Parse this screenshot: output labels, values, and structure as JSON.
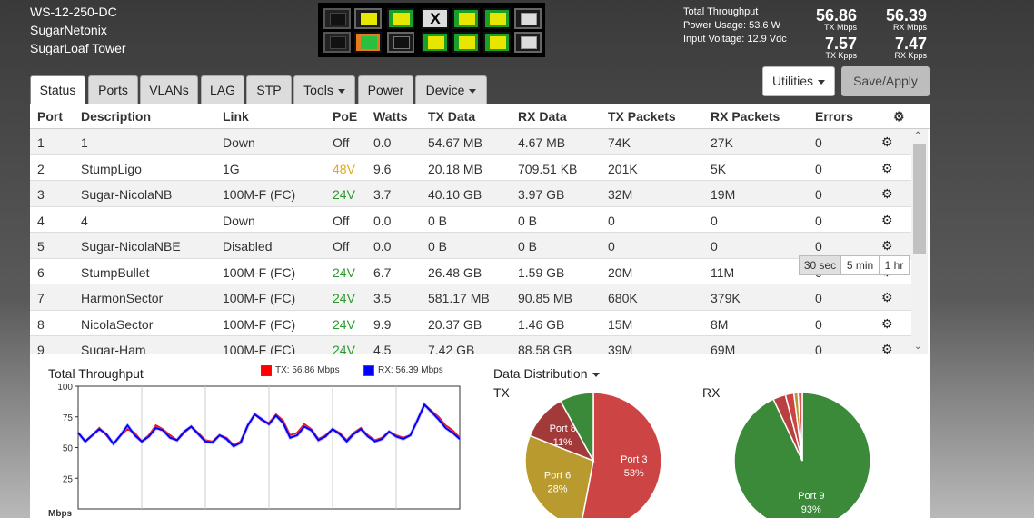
{
  "device": {
    "model": "WS-12-250-DC",
    "name": "SugarNetonix",
    "location": "SugarLoaf Tower"
  },
  "port_map": {
    "top": [
      "empty",
      "yellow-on-black",
      "yellow-on-green",
      "x",
      "yellow-on-green",
      "yellow-on-green",
      "white-on-black"
    ],
    "bottom": [
      "empty",
      "green-on-orange",
      "black-on-black",
      "yellow-on-green",
      "yellow-on-green",
      "yellow-on-green",
      "white-on-black"
    ]
  },
  "throughput": {
    "label_total": "Total Throughput",
    "power_usage": "Power Usage: 53.6 W",
    "input_voltage": "Input Voltage: 12.9 Vdc",
    "tx_mbps": "56.86",
    "tx_mbps_unit": "TX Mbps",
    "rx_mbps": "56.39",
    "rx_mbps_unit": "RX Mbps",
    "tx_kpps": "7.57",
    "tx_kpps_unit": "TX Kpps",
    "rx_kpps": "7.47",
    "rx_kpps_unit": "RX Kpps"
  },
  "actions": {
    "utilities": "Utilities",
    "save": "Save/Apply"
  },
  "tabs": [
    "Status",
    "Ports",
    "VLANs",
    "LAG",
    "STP",
    "Tools",
    "Power",
    "Device"
  ],
  "table": {
    "headers": [
      "Port",
      "Description",
      "Link",
      "PoE",
      "Watts",
      "TX Data",
      "RX Data",
      "TX Packets",
      "RX Packets",
      "Errors"
    ],
    "rows": [
      [
        "1",
        "1",
        "Down",
        "Off",
        "0.0",
        "54.67 MB",
        "4.67 MB",
        "74K",
        "27K",
        "0"
      ],
      [
        "2",
        "StumpLigo",
        "1G",
        "48V",
        "9.6",
        "20.18 MB",
        "709.51 KB",
        "201K",
        "5K",
        "0"
      ],
      [
        "3",
        "Sugar-NicolaNB",
        "100M-F (FC)",
        "24V",
        "3.7",
        "40.10 GB",
        "3.97 GB",
        "32M",
        "19M",
        "0"
      ],
      [
        "4",
        "4",
        "Down",
        "Off",
        "0.0",
        "0 B",
        "0 B",
        "0",
        "0",
        "0"
      ],
      [
        "5",
        "Sugar-NicolaNBE",
        "Disabled",
        "Off",
        "0.0",
        "0 B",
        "0 B",
        "0",
        "0",
        "0"
      ],
      [
        "6",
        "StumpBullet",
        "100M-F (FC)",
        "24V",
        "6.7",
        "26.48 GB",
        "1.59 GB",
        "20M",
        "11M",
        "0"
      ],
      [
        "7",
        "HarmonSector",
        "100M-F (FC)",
        "24V",
        "3.5",
        "581.17 MB",
        "90.85 MB",
        "680K",
        "379K",
        "0"
      ],
      [
        "8",
        "NicolaSector",
        "100M-F (FC)",
        "24V",
        "9.9",
        "20.37 GB",
        "1.46 GB",
        "15M",
        "8M",
        "0"
      ],
      [
        "9",
        "Sugar-Ham",
        "100M-F (FC)",
        "24V",
        "4.5",
        "7.42 GB",
        "88.58 GB",
        "39M",
        "69M",
        "0"
      ]
    ],
    "poe_colors": {
      "48V": "#e6a817",
      "24V": "#2a9a2a",
      "Off": "#333333"
    }
  },
  "charts": {
    "throughput_title": "Total Throughput",
    "legend_tx": "TX: 56.86 Mbps",
    "legend_rx": "RX: 56.39 Mbps",
    "distribution_title": "Data Distribution",
    "tx_label": "TX",
    "rx_label": "RX",
    "time_buttons": [
      "30 sec",
      "5 min",
      "1 hr"
    ]
  },
  "chart_data": [
    {
      "type": "line",
      "title": "Total Throughput",
      "ylabel": "Mbps",
      "ylim": [
        0,
        100
      ],
      "yticks": [
        25,
        50,
        75,
        100
      ],
      "series": [
        {
          "name": "TX: 56.86 Mbps",
          "color": "#ff0000",
          "values": [
            62,
            55,
            60,
            66,
            60,
            53,
            60,
            65,
            62,
            55,
            60,
            68,
            65,
            60,
            56,
            62,
            67,
            62,
            56,
            55,
            60,
            58,
            52,
            55,
            68,
            77,
            72,
            70,
            77,
            72,
            60,
            62,
            69,
            65,
            57,
            60,
            65,
            62,
            56,
            62,
            66,
            60,
            56,
            58,
            63,
            60,
            58,
            60,
            72,
            85,
            80,
            75,
            68,
            64,
            58
          ]
        },
        {
          "name": "RX: 56.39 Mbps",
          "color": "#0000ff",
          "values": [
            62,
            55,
            60,
            65,
            61,
            53,
            60,
            68,
            60,
            55,
            59,
            66,
            64,
            58,
            56,
            63,
            67,
            61,
            55,
            54,
            60,
            57,
            51,
            54,
            68,
            77,
            73,
            69,
            76,
            70,
            58,
            60,
            67,
            64,
            56,
            59,
            65,
            61,
            55,
            61,
            65,
            59,
            55,
            57,
            63,
            59,
            57,
            60,
            72,
            85,
            79,
            73,
            66,
            62,
            57
          ]
        }
      ]
    },
    {
      "type": "pie",
      "title": "TX",
      "slices": [
        {
          "label": "Port 3",
          "value": 53,
          "color": "#cc4444"
        },
        {
          "label": "Port 6",
          "value": 28,
          "color": "#b89a2e"
        },
        {
          "label": "Port 8",
          "value": 11,
          "color": "#a33a3a"
        },
        {
          "label": "",
          "value": 8,
          "color": "#3a8a3a"
        }
      ]
    },
    {
      "type": "pie",
      "title": "RX",
      "slices": [
        {
          "label": "Port 9",
          "value": 93,
          "color": "#3a8a3a"
        },
        {
          "label": "",
          "value": 3,
          "color": "#b84040"
        },
        {
          "label": "",
          "value": 2,
          "color": "#cc4444"
        },
        {
          "label": "",
          "value": 1,
          "color": "#b89a2e"
        },
        {
          "label": "",
          "value": 1,
          "color": "#dd5555"
        }
      ]
    }
  ]
}
